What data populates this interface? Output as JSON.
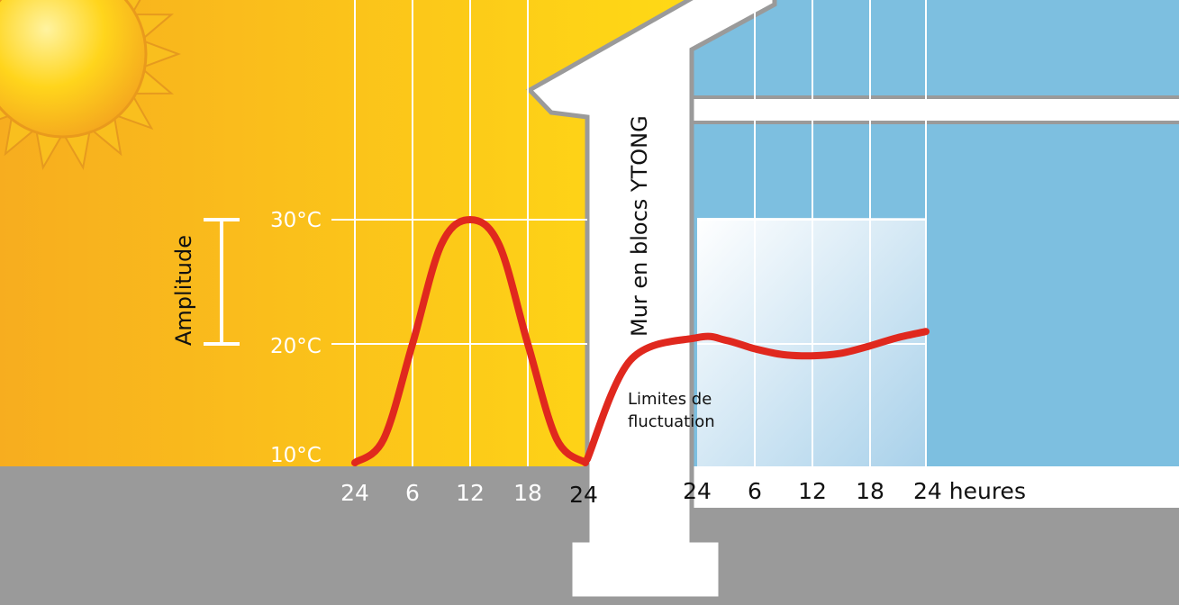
{
  "wall_label": "Mur en blocs YTONG",
  "amplitude_label": "Amplitude",
  "fluctuation_label_line1": "Limites de",
  "fluctuation_label_line2": "fluctuation",
  "temperature_labels": [
    "30°C",
    "20°C",
    "10°C"
  ],
  "outside_time_ticks": [
    "24",
    "6",
    "12",
    "18",
    "24"
  ],
  "inside_time_ticks": [
    "24",
    "6",
    "12",
    "18",
    "24 heures"
  ],
  "colors": {
    "outside_left": "#f9b41c",
    "outside_right": "#ffd817",
    "inside_sky": "#7dbfe0",
    "ground": "#9a9a9a",
    "curve": "#e0281e",
    "wall": "#ffffff",
    "wall_outline": "#9a9a9a",
    "sun": "#ffd11a"
  },
  "chart_data": {
    "type": "line",
    "xlabel": "heures",
    "x_ticks": [
      "24",
      "6",
      "12",
      "18",
      "24"
    ],
    "y_ticks": [
      "10°C",
      "20°C",
      "30°C"
    ],
    "ylim": [
      10,
      30
    ],
    "series": [
      {
        "x": [
          0,
          3,
          6,
          9,
          12,
          15,
          18,
          21,
          24
        ],
        "y": [
          10,
          12,
          20,
          28,
          30,
          28,
          20,
          12,
          10
        ]
      },
      {
        "x": [
          0,
          3,
          6,
          9,
          12,
          15,
          18,
          21,
          24
        ],
        "y": [
          20.5,
          20.3,
          19.6,
          19.1,
          19.0,
          19.2,
          19.8,
          20.5,
          21
        ]
      }
    ]
  }
}
